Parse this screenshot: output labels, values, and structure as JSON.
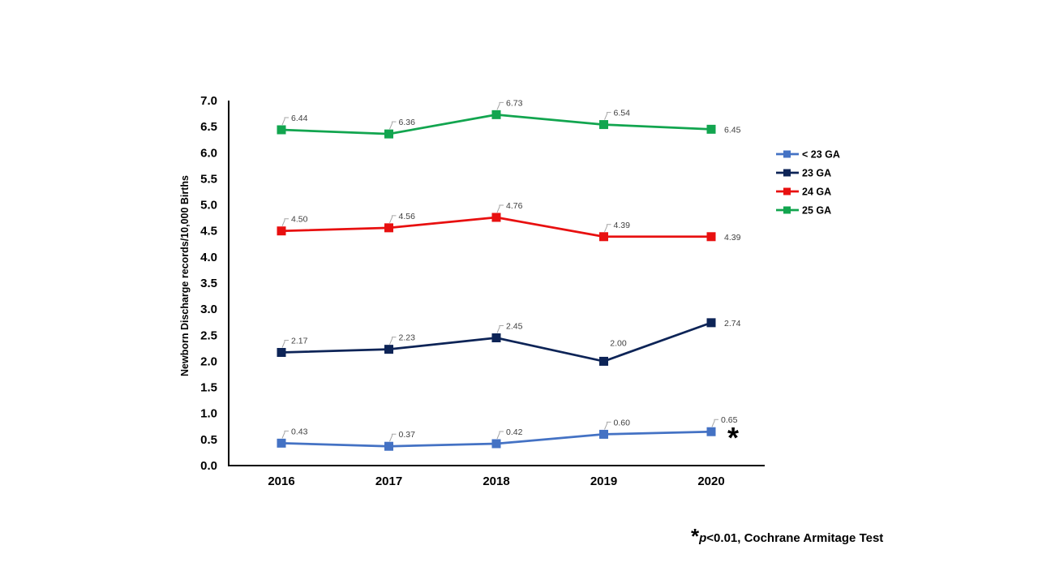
{
  "chart_data": {
    "type": "line",
    "categories": [
      "2016",
      "2017",
      "2018",
      "2019",
      "2020"
    ],
    "ylabel": "Newborn Discharge records/10,000 Births",
    "xlabel": "",
    "ylim": [
      0,
      7
    ],
    "yticks": [
      "0.0",
      "0.5",
      "1.0",
      "1.5",
      "2.0",
      "2.5",
      "3.0",
      "3.5",
      "4.0",
      "4.5",
      "5.0",
      "5.5",
      "6.0",
      "6.5",
      "7.0"
    ],
    "grid": false,
    "legend_position": "right",
    "series": [
      {
        "name": "< 23 GA",
        "color": "#4472C4",
        "values": [
          0.43,
          0.37,
          0.42,
          0.6,
          0.65
        ],
        "labels": [
          "0.43",
          "0.37",
          "0.42",
          "0.60",
          "0.65"
        ]
      },
      {
        "name": "23 GA",
        "color": "#0D2457",
        "values": [
          2.17,
          2.23,
          2.45,
          2.0,
          2.74
        ],
        "labels": [
          "2.17",
          "2.23",
          "2.45",
          "2.00",
          "2.74"
        ]
      },
      {
        "name": "24 GA",
        "color": "#E81010",
        "values": [
          4.5,
          4.56,
          4.76,
          4.39,
          4.39
        ],
        "labels": [
          "4.50",
          "4.56",
          "4.76",
          "4.39",
          "4.39"
        ]
      },
      {
        "name": "25 GA",
        "color": "#12A54F",
        "values": [
          6.44,
          6.36,
          6.73,
          6.54,
          6.45
        ],
        "labels": [
          "6.44",
          "6.36",
          "6.73",
          "6.54",
          "6.45"
        ]
      }
    ],
    "annotation": {
      "marker": "*",
      "series": "< 23 GA",
      "category": "2020"
    }
  },
  "footnote": {
    "star": "*",
    "p_text": "p",
    "rest": "<0.01, Cochrane Armitage  Test"
  }
}
